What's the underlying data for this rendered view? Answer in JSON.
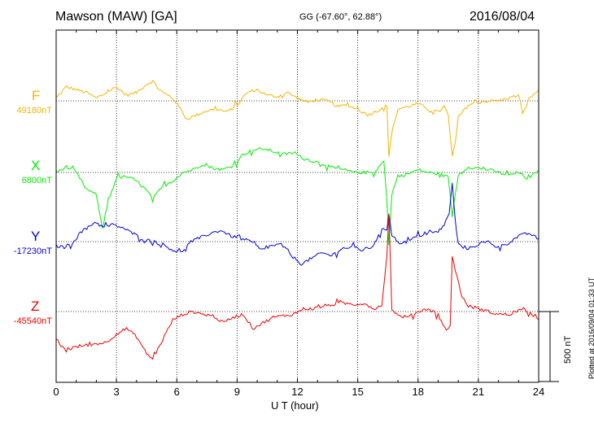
{
  "header": {
    "station": "Mawson (MAW)  [GA]",
    "coords": "GG (-67.60°,  62.88°)",
    "date": "2016/08/04"
  },
  "footer": {
    "xlabel": "U T (hour)",
    "plotted": "Plotted at 2016/09/04 01:33 UT",
    "scale_label": "500 nT"
  },
  "chart_data": {
    "type": "line",
    "title": "Mawson (MAW)  [GA]",
    "xlabel": "U T (hour)",
    "ylabel": "",
    "xlim": [
      0,
      24
    ],
    "xticks": [
      0,
      3,
      6,
      9,
      12,
      15,
      18,
      21,
      24
    ],
    "grid": true,
    "scale_bar_nT": 500,
    "series": [
      {
        "name": "F",
        "baseline_label": "49180nT",
        "color": "#f5b400",
        "x": [
          0,
          0.5,
          1,
          1.5,
          2,
          2.5,
          3,
          3.5,
          4,
          4.5,
          4.8,
          5.3,
          5.8,
          6.2,
          6.5,
          7,
          7.5,
          8,
          8.5,
          9,
          9.5,
          10,
          10.5,
          11,
          11.5,
          12,
          12.5,
          13,
          13.5,
          14,
          14.5,
          15,
          15.5,
          16,
          16.3,
          16.45,
          16.55,
          16.7,
          17,
          17.5,
          18,
          18.5,
          19,
          19.3,
          19.5,
          19.7,
          19.85,
          20,
          20.5,
          21,
          21.5,
          22,
          22.5,
          23,
          23.2,
          23.5,
          24
        ],
        "values": [
          20,
          100,
          80,
          60,
          20,
          60,
          100,
          40,
          60,
          120,
          140,
          60,
          20,
          -60,
          -130,
          -100,
          -70,
          -60,
          -80,
          -30,
          60,
          80,
          40,
          30,
          60,
          20,
          -10,
          10,
          0,
          -40,
          -30,
          -60,
          -100,
          -70,
          -40,
          -40,
          -400,
          -220,
          -60,
          -40,
          -20,
          -60,
          -80,
          -40,
          -100,
          -400,
          -300,
          -120,
          -30,
          -10,
          0,
          0,
          20,
          40,
          -100,
          10,
          80
        ]
      },
      {
        "name": "X",
        "baseline_label": "6800nT",
        "color": "#00ee00",
        "x": [
          0,
          0.5,
          1,
          1.5,
          2,
          2.3,
          2.6,
          3,
          3.5,
          4,
          4.5,
          4.8,
          5.3,
          5.8,
          6.3,
          6.8,
          7.3,
          7.8,
          8.3,
          8.8,
          9.3,
          9.8,
          10.3,
          10.8,
          11.3,
          11.8,
          12.3,
          12.8,
          13.3,
          13.8,
          14.3,
          14.8,
          15.3,
          15.8,
          16.3,
          16.45,
          16.55,
          16.7,
          17,
          17.5,
          18,
          18.5,
          19,
          19.5,
          19.7,
          19.85,
          20,
          20.5,
          21,
          21.5,
          22,
          22.5,
          23,
          23.5,
          24
        ],
        "values": [
          0,
          40,
          0,
          -120,
          -160,
          -400,
          -200,
          -40,
          -30,
          -60,
          -130,
          -190,
          -100,
          -60,
          0,
          20,
          60,
          30,
          20,
          50,
          130,
          160,
          170,
          150,
          130,
          140,
          100,
          80,
          60,
          30,
          20,
          0,
          0,
          0,
          80,
          -200,
          -520,
          -150,
          -30,
          -10,
          20,
          0,
          -10,
          -30,
          -310,
          -160,
          -20,
          40,
          30,
          20,
          0,
          -20,
          0,
          -50,
          20
        ]
      },
      {
        "name": "Y",
        "baseline_label": "-17230nT",
        "color": "#0000dd",
        "x": [
          0,
          0.4,
          0.8,
          1.2,
          1.6,
          2,
          2.3,
          2.8,
          3.3,
          3.8,
          4.3,
          4.8,
          5.3,
          5.8,
          6.2,
          6.7,
          7.2,
          7.7,
          8.2,
          8.7,
          9.2,
          9.7,
          10.2,
          10.7,
          11.2,
          11.7,
          12.2,
          12.7,
          13.2,
          13.7,
          14.2,
          14.7,
          15.2,
          15.7,
          16.2,
          16.45,
          16.55,
          16.7,
          17,
          17.5,
          18,
          18.5,
          19,
          19.3,
          19.55,
          19.7,
          19.85,
          20,
          20.5,
          21,
          21.5,
          22,
          22.5,
          23,
          23.5,
          24
        ],
        "values": [
          -30,
          -40,
          -10,
          60,
          110,
          140,
          100,
          120,
          100,
          60,
          20,
          0,
          -20,
          -60,
          -80,
          0,
          30,
          60,
          80,
          40,
          20,
          0,
          -60,
          -30,
          -20,
          -100,
          -160,
          -120,
          -80,
          -100,
          -50,
          -40,
          -60,
          -40,
          80,
          90,
          200,
          60,
          -10,
          0,
          40,
          60,
          70,
          120,
          200,
          420,
          150,
          -20,
          -50,
          -20,
          0,
          -40,
          -10,
          40,
          60,
          20
        ]
      },
      {
        "name": "Z",
        "baseline_label": "-45540nT",
        "color": "#ee0000",
        "x": [
          0,
          0.5,
          1,
          1.5,
          2,
          2.5,
          3,
          3.5,
          4,
          4.5,
          4.8,
          5.3,
          5.8,
          6.3,
          6.8,
          7.3,
          7.8,
          8.3,
          8.8,
          9.3,
          9.8,
          10.3,
          10.8,
          11.3,
          11.8,
          12.3,
          12.8,
          13.3,
          13.8,
          14.3,
          14.8,
          15.3,
          15.8,
          16.2,
          16.45,
          16.55,
          16.7,
          17,
          17.5,
          18,
          18.5,
          19,
          19.4,
          19.6,
          19.7,
          19.85,
          20.2,
          20.5,
          21,
          21.5,
          22,
          22.5,
          23,
          23.5,
          24
        ],
        "values": [
          -200,
          -280,
          -250,
          -240,
          -230,
          -220,
          -160,
          -120,
          -180,
          -300,
          -340,
          -200,
          -60,
          -20,
          0,
          -20,
          -30,
          -80,
          -40,
          -20,
          -120,
          -80,
          -40,
          -30,
          -20,
          20,
          20,
          40,
          50,
          60,
          50,
          60,
          20,
          40,
          400,
          700,
          20,
          -30,
          -40,
          0,
          20,
          -20,
          -140,
          -100,
          400,
          300,
          100,
          40,
          20,
          0,
          -20,
          -20,
          10,
          0,
          -60
        ]
      }
    ]
  }
}
